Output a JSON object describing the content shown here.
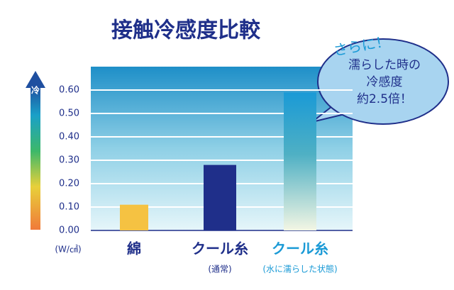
{
  "chart_data": {
    "type": "bar",
    "title": "接触冷感度比較",
    "unit_label": "(W/㎠)",
    "axis_arrow_label": "冷",
    "categories": [
      "綿",
      "クール糸",
      "クール糸"
    ],
    "category_notes": [
      null,
      "(通常)",
      "(水に濡らした状態)"
    ],
    "values": [
      0.11,
      0.28,
      0.59
    ],
    "colors": [
      "#f5c242",
      "#1f2f8a",
      "#1a9ad6"
    ],
    "ylim": [
      0,
      0.7
    ],
    "yticks": [
      {
        "value": 0,
        "label": "0.00"
      },
      {
        "value": 0.1,
        "label": "0.10"
      },
      {
        "value": 0.2,
        "label": "0.20"
      },
      {
        "value": 0.3,
        "label": "0.30"
      },
      {
        "value": 0.4,
        "label": "0.40"
      },
      {
        "value": 0.5,
        "label": "0.50"
      },
      {
        "value": 0.6,
        "label": "0.60"
      }
    ],
    "grid": true,
    "annotations": [
      "さらに！",
      "濡らした時の",
      "冷感度",
      "約2.5倍！"
    ]
  }
}
